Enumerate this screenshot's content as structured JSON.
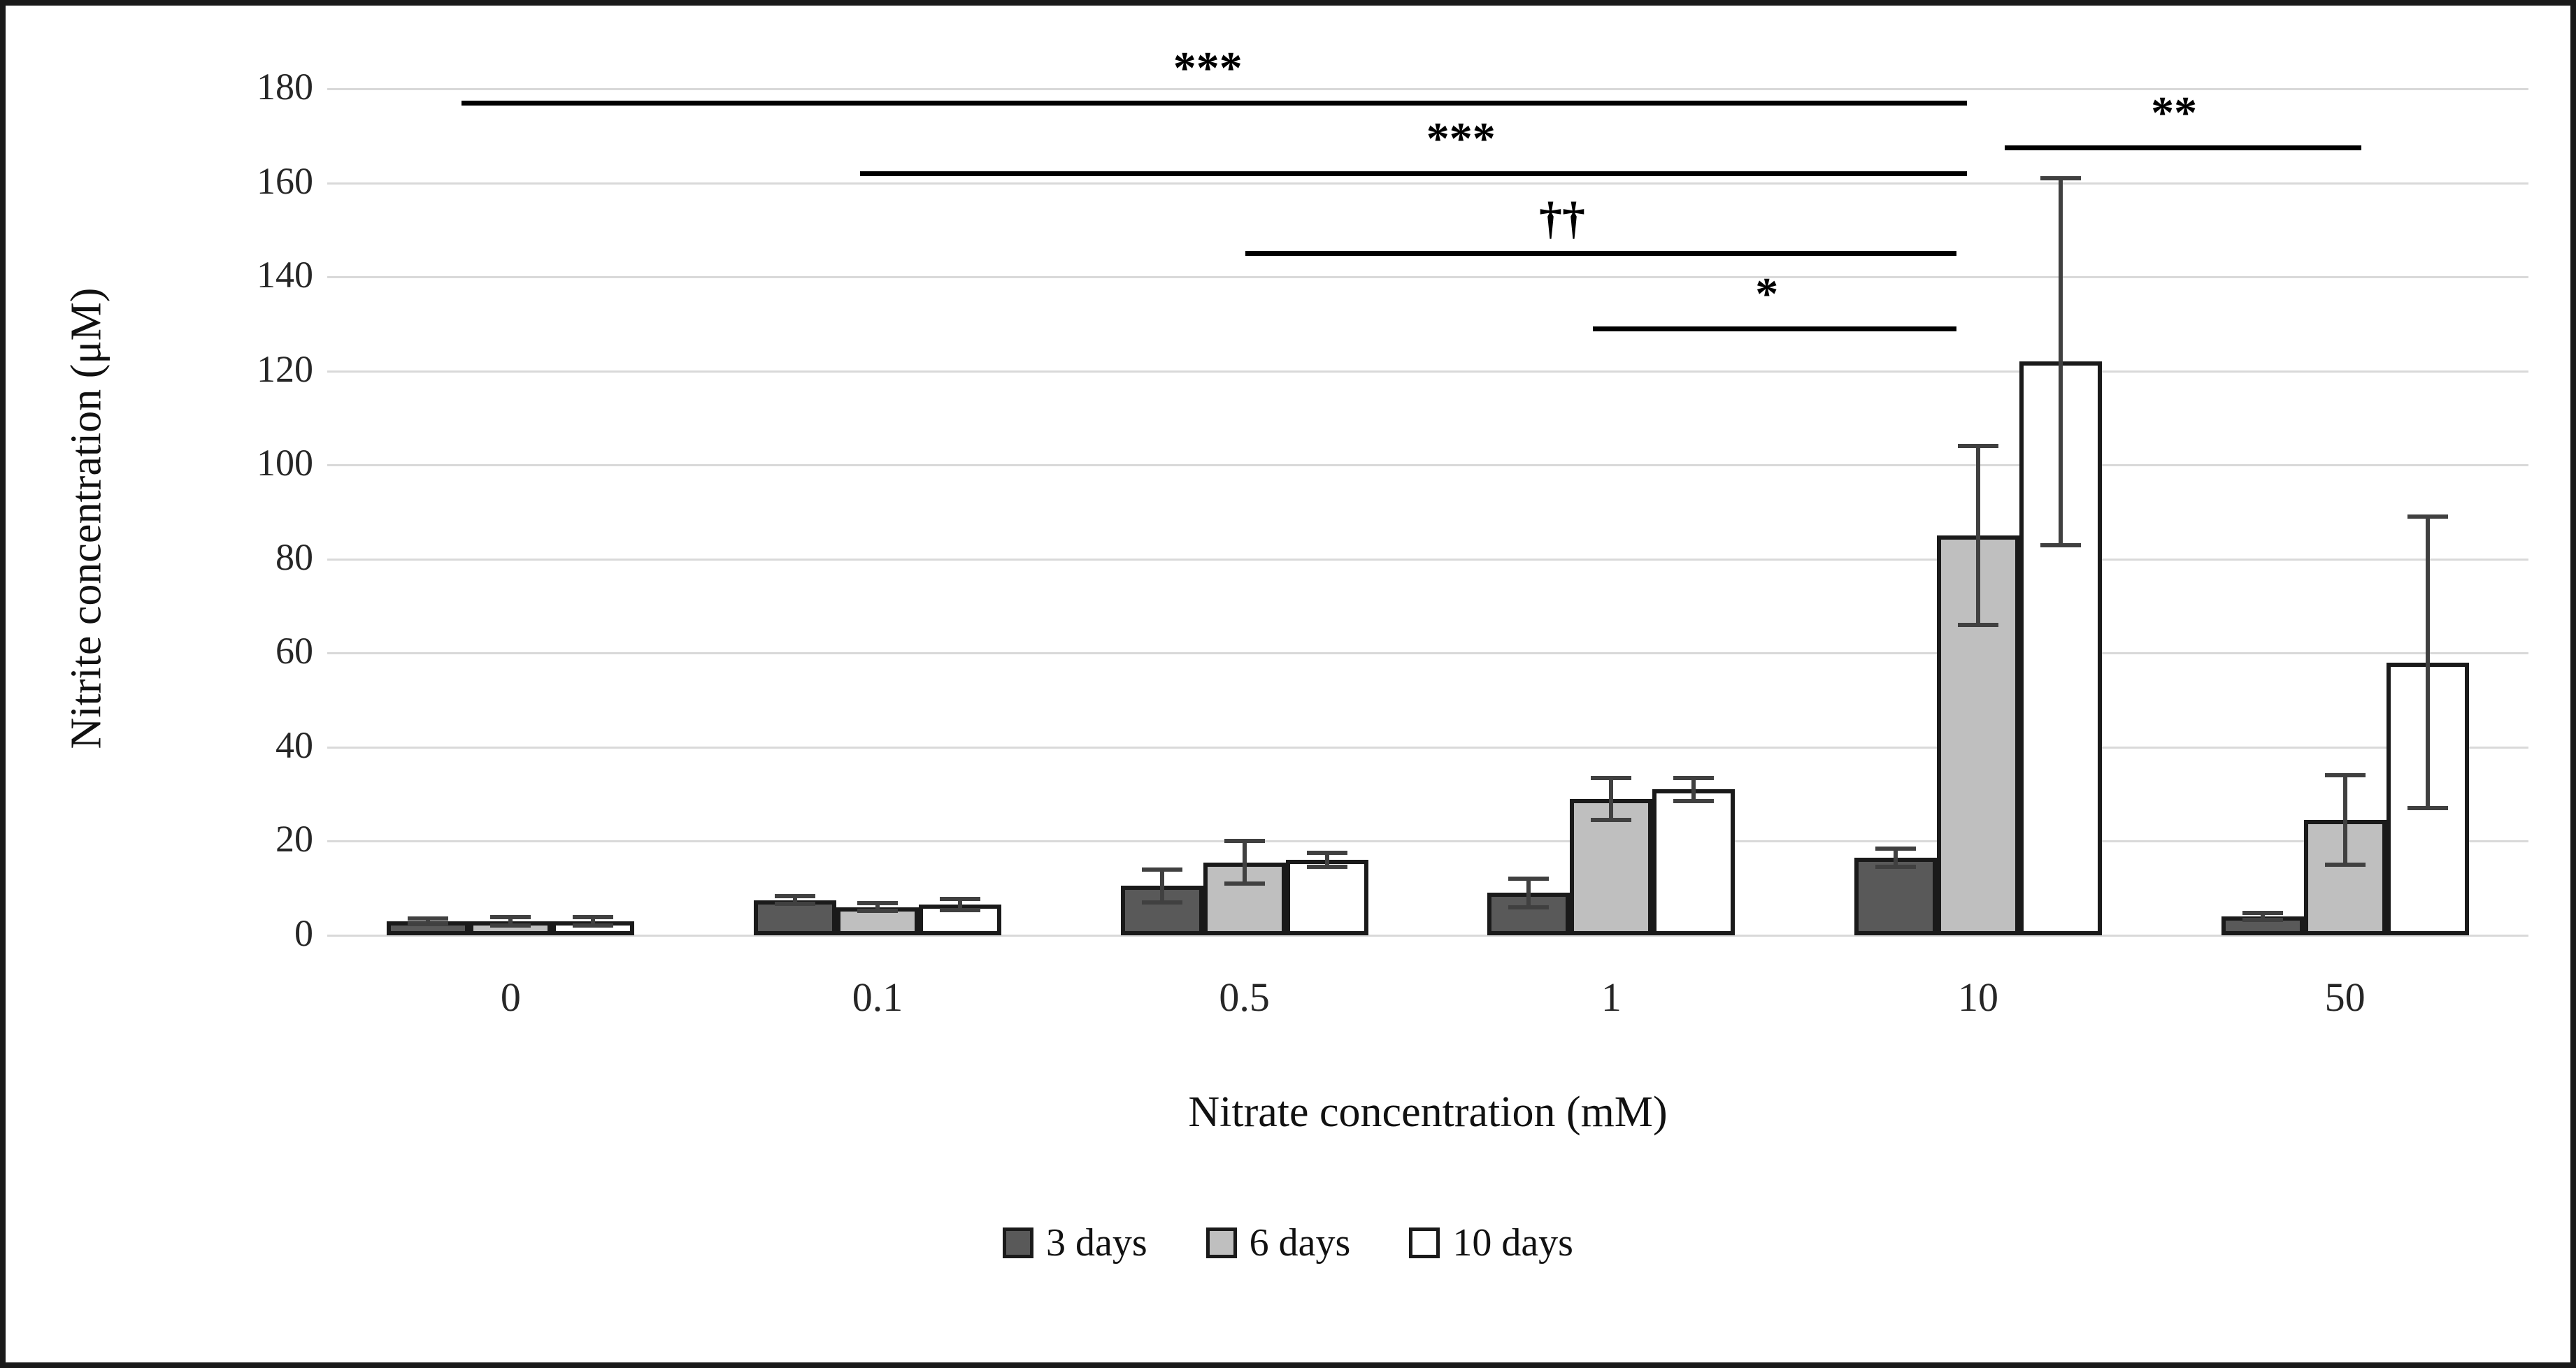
{
  "chart_data": {
    "type": "bar",
    "title": "",
    "xlabel": "Nitrate concentration (mM)",
    "ylabel": "Nitrite concentration (μM)",
    "categories": [
      "0",
      "0.1",
      "0.5",
      "1",
      "10",
      "50"
    ],
    "y_ticks": [
      0,
      20,
      40,
      60,
      80,
      100,
      120,
      140,
      160,
      180
    ],
    "ylim": [
      0,
      180
    ],
    "grid": "horizontal",
    "legend_position": "bottom",
    "series": [
      {
        "name": "3 days",
        "fill": "#595959",
        "values": [
          3,
          7.5,
          10.5,
          9,
          16.5,
          4
        ],
        "errors": [
          0.6,
          0.8,
          3.5,
          3,
          2,
          0.7
        ]
      },
      {
        "name": "6 days",
        "fill": "#bfbfbf",
        "values": [
          3,
          6,
          15.5,
          29,
          85,
          24.5
        ],
        "errors": [
          0.9,
          0.8,
          4.5,
          4.5,
          19,
          9.5
        ]
      },
      {
        "name": "10 days",
        "fill": "#ffffff",
        "values": [
          3,
          6.5,
          16,
          31,
          122,
          58
        ],
        "errors": [
          0.9,
          1.2,
          1.5,
          2.5,
          39,
          31
        ]
      }
    ],
    "annotations": [
      {
        "label": "***",
        "y": 177,
        "x1": 0.061,
        "x2": 0.745,
        "label_x": 0.4
      },
      {
        "label": "***",
        "y": 162,
        "x1": 0.242,
        "x2": 0.745,
        "label_x": 0.515
      },
      {
        "label": "††",
        "y": 145,
        "x1": 0.417,
        "x2": 0.74,
        "label_x": 0.561
      },
      {
        "label": "*",
        "y": 129,
        "x1": 0.575,
        "x2": 0.74,
        "label_x": 0.654
      },
      {
        "label": "**",
        "y": 167.5,
        "x1": 0.762,
        "x2": 0.924,
        "label_x": 0.839
      }
    ],
    "colors": {
      "grid": "#d9d9d9",
      "bar_border": "#1a1a1a",
      "error_bar": "#404040",
      "text": "#262626",
      "figure_border": "#1a1a1a",
      "background": "#ffffff"
    }
  }
}
